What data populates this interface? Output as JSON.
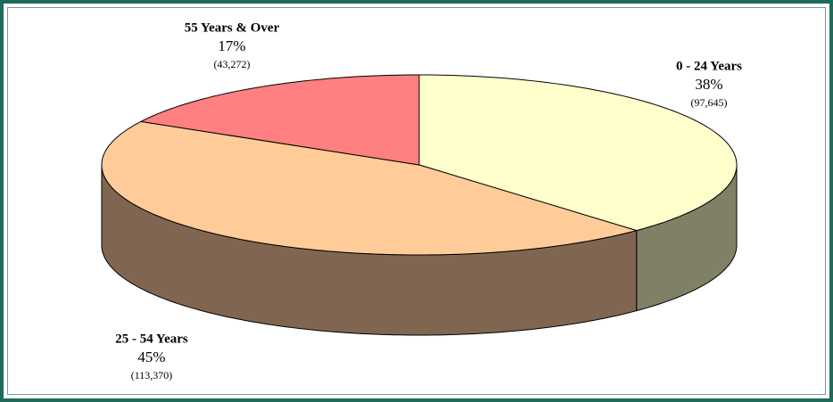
{
  "chart_data": {
    "type": "pie3d",
    "categories": [
      "0 - 24 Years",
      "25 - 54 Years",
      "55 Years & Over"
    ],
    "values": [
      38,
      45,
      17
    ],
    "value_labels": [
      "38%",
      "45%",
      "17%"
    ],
    "counts": [
      97645,
      113370,
      43272
    ],
    "count_labels": [
      "(97,645)",
      "(113,370)",
      "(43,272)"
    ],
    "colors": [
      "#ffffcc",
      "#ffcc99",
      "#ff8080"
    ],
    "side_colors": [
      "#808066",
      "#806650",
      "#804040"
    ]
  }
}
